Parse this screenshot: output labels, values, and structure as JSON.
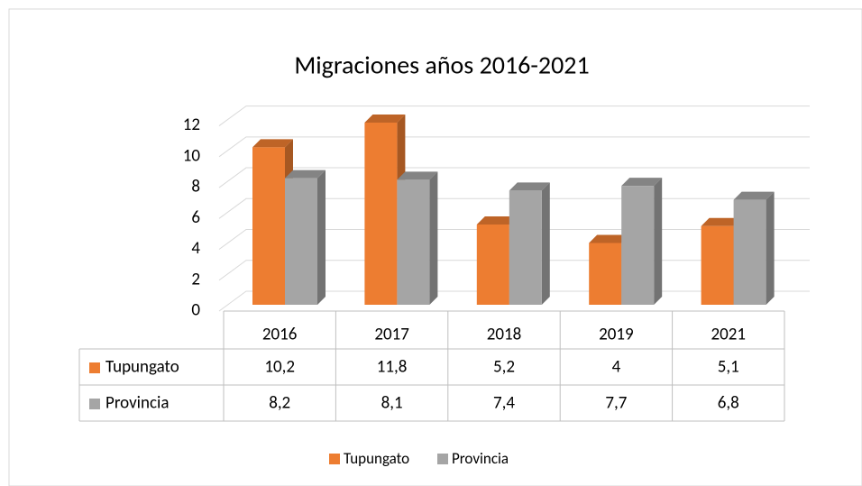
{
  "chart_data": {
    "type": "bar3d",
    "title": "Migraciones años 2016-2021",
    "categories": [
      "2016",
      "2017",
      "2018",
      "2019",
      "2021"
    ],
    "series": [
      {
        "name": "Tupungato",
        "color": "#ed7d31",
        "values": [
          10.2,
          11.8,
          5.2,
          4,
          5.1
        ],
        "value_labels": [
          "10,2",
          "11,8",
          "5,2",
          "4",
          "5,1"
        ]
      },
      {
        "name": "Provincia",
        "color": "#a5a5a5",
        "values": [
          8.2,
          8.1,
          7.4,
          7.7,
          6.8
        ],
        "value_labels": [
          "8,2",
          "8,1",
          "7,4",
          "7,7",
          "6,8"
        ]
      }
    ],
    "ylim": [
      0,
      12
    ],
    "yticks": [
      0,
      2,
      4,
      6,
      8,
      10,
      12
    ],
    "grid": true,
    "data_table": true,
    "legend": "bottom"
  }
}
